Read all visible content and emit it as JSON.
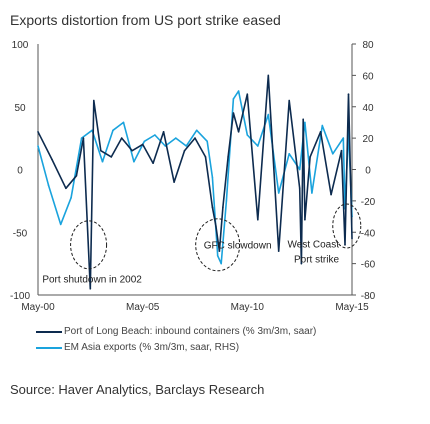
{
  "title": "Exports distortion from US port strike eased",
  "source": "Source: Haver Analytics, Barclays Research",
  "colors": {
    "port": "#0d2b4f",
    "em": "#1aa3dd",
    "circle": "#1e1e1e",
    "axis": "#555555"
  },
  "chart_data": {
    "type": "line",
    "title": "Exports distortion from US port strike eased",
    "x_range": [
      "2000-05",
      "2015-05"
    ],
    "x_ticks": [
      {
        "date": "2000-05",
        "label": "May-00"
      },
      {
        "date": "2005-05",
        "label": "May-05"
      },
      {
        "date": "2010-05",
        "label": "May-10"
      },
      {
        "date": "2015-05",
        "label": "May-15"
      }
    ],
    "y_left": {
      "range": [
        -100,
        100
      ],
      "ticks": [
        100,
        50,
        0,
        -50,
        -100
      ],
      "labels": [
        "100",
        "50",
        "0",
        "-50",
        "-100"
      ]
    },
    "y_right": {
      "range": [
        -80,
        80
      ],
      "ticks": [
        80,
        60,
        40,
        20,
        0,
        -20,
        -40,
        -60,
        -80
      ],
      "labels": [
        "80",
        "60",
        "40",
        "20",
        "0",
        "-20",
        "-40",
        "-60",
        "-80"
      ]
    },
    "grid": false,
    "legend_position": "bottom",
    "series": [
      {
        "name": "Port of Long Beach: inbound containers (% 3m/3m, saar)",
        "axis": "left",
        "x": [
          "2000-05",
          "2001-01",
          "2001-09",
          "2002-03",
          "2002-07",
          "2002-11",
          "2003-01",
          "2003-05",
          "2003-11",
          "2004-05",
          "2004-11",
          "2005-05",
          "2005-11",
          "2006-05",
          "2006-11",
          "2007-05",
          "2007-11",
          "2008-05",
          "2008-09",
          "2008-11",
          "2009-01",
          "2009-03",
          "2009-06",
          "2009-09",
          "2009-12",
          "2010-05",
          "2010-11",
          "2011-05",
          "2011-11",
          "2012-05",
          "2012-11",
          "2012-12",
          "2013-01",
          "2013-02",
          "2013-05",
          "2013-11",
          "2014-05",
          "2014-11",
          "2015-01",
          "2015-03",
          "2015-05"
        ],
        "values": [
          30,
          8,
          -15,
          -5,
          25,
          -95,
          55,
          15,
          10,
          25,
          15,
          20,
          5,
          30,
          -10,
          15,
          25,
          10,
          -30,
          -45,
          -65,
          -30,
          10,
          45,
          30,
          60,
          -40,
          75,
          -65,
          55,
          -15,
          -75,
          40,
          -40,
          10,
          30,
          -20,
          15,
          -60,
          60,
          -55
        ]
      },
      {
        "name": "EM Asia exports (% 3m/3m, saar, RHS)",
        "axis": "right",
        "x": [
          "2000-05",
          "2000-11",
          "2001-06",
          "2001-12",
          "2002-06",
          "2002-12",
          "2003-06",
          "2003-12",
          "2004-06",
          "2004-12",
          "2005-06",
          "2005-12",
          "2006-06",
          "2006-12",
          "2007-06",
          "2007-12",
          "2008-06",
          "2008-09",
          "2008-12",
          "2009-02",
          "2009-05",
          "2009-09",
          "2009-12",
          "2010-05",
          "2010-11",
          "2011-05",
          "2011-11",
          "2012-05",
          "2012-11",
          "2013-02",
          "2013-06",
          "2013-12",
          "2014-06",
          "2014-12",
          "2015-01",
          "2015-03",
          "2015-05"
        ],
        "values": [
          15,
          -10,
          -35,
          -18,
          20,
          25,
          5,
          25,
          30,
          5,
          18,
          22,
          15,
          20,
          15,
          25,
          18,
          -5,
          -55,
          -60,
          -20,
          45,
          50,
          22,
          15,
          35,
          -15,
          10,
          0,
          30,
          -15,
          28,
          10,
          20,
          -25,
          25,
          -30
        ]
      }
    ],
    "annotations": [
      {
        "text": "GFC slowdown",
        "date": "2008-04",
        "y_left": -63
      },
      {
        "text": "Port shutdown in 2002",
        "date": "2002-11",
        "y_left": -90
      },
      {
        "text": "West Coast",
        "date": "2015-01",
        "y_left": -62
      },
      {
        "text": "Port strike",
        "date": "2015-01",
        "y_left": -74
      }
    ],
    "highlight_circles": [
      {
        "center_date": "2002-10",
        "y_left": -60
      },
      {
        "center_date": "2008-12",
        "y_left": -60
      },
      {
        "center_date": "2015-02",
        "y_left": -45
      }
    ]
  }
}
